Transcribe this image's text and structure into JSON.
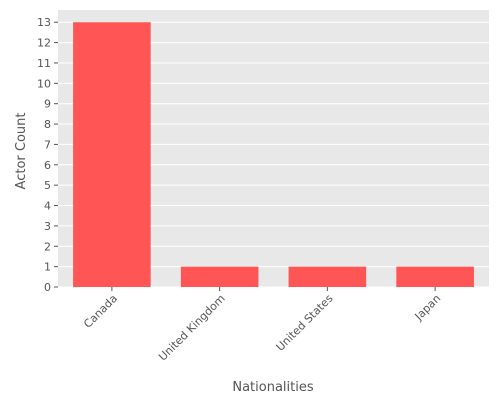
{
  "chart_data": {
    "type": "bar",
    "title": "",
    "xlabel": "Nationalities",
    "ylabel": "Actor Count",
    "categories": [
      "Canada",
      "United Kingdom",
      "United States",
      "Japan"
    ],
    "values": [
      13,
      1,
      1,
      1
    ],
    "ylim": [
      0,
      13.6
    ],
    "yticks": [
      0,
      1,
      2,
      3,
      4,
      5,
      6,
      7,
      8,
      9,
      10,
      11,
      12,
      13
    ],
    "grid": true,
    "legend": "none",
    "bar_color": "#ff5555",
    "background_color": "#e8e8e8",
    "grid_color": "#ffffff"
  }
}
